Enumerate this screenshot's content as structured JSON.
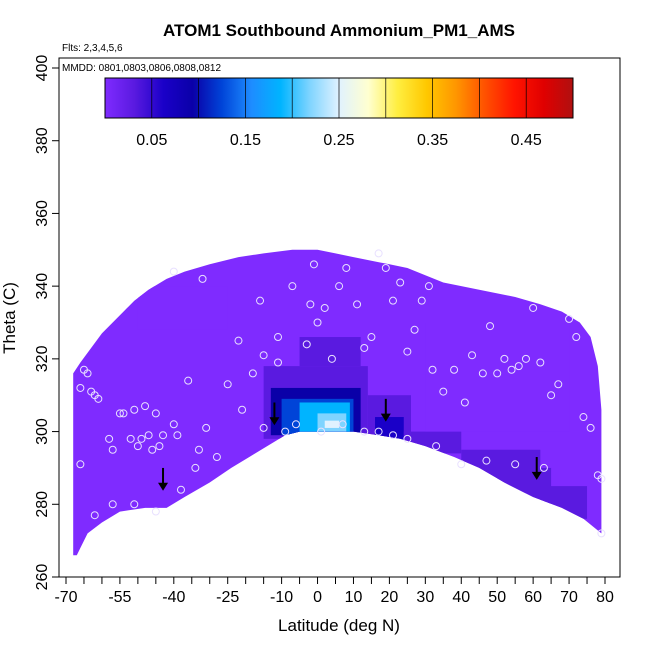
{
  "chart_data": {
    "type": "heatmap",
    "title": "ATOM1 Southbound Ammonium_PM1_AMS",
    "flights_note": "Flts: 2,3,4,5,6",
    "dates_note": "MMDD: 0801,0803,0806,0808,0812",
    "xlabel": "Latitude (deg N)",
    "ylabel": "Theta (C)",
    "xlim": [
      -70,
      80
    ],
    "ylim": [
      260,
      400
    ],
    "x_tick_labels": [
      "-70",
      "-55",
      "-40",
      "-25",
      "-10",
      "0",
      "10",
      "20",
      "30",
      "40",
      "50",
      "60",
      "70",
      "80"
    ],
    "y_tick_labels": [
      "260",
      "280",
      "300",
      "320",
      "340",
      "360",
      "380",
      "400"
    ],
    "colorbar": {
      "range": [
        0.0,
        0.5
      ],
      "tick_values": [
        0.05,
        0.15,
        0.25,
        0.35,
        0.45
      ],
      "tick_labels": [
        "0.05",
        "0.15",
        "0.25",
        "0.35",
        "0.45"
      ],
      "colors": [
        "#7f2bff",
        "#5a1ae0",
        "#1a00c8",
        "#0a00a8",
        "#0044d8",
        "#1e8cff",
        "#00b4ff",
        "#7fd4ff",
        "#e0f2ff",
        "#ffffd0",
        "#ffee40",
        "#ffc800",
        "#ff9600",
        "#ff5000",
        "#ff1400",
        "#e00000",
        "#b01010"
      ]
    },
    "domain_top": [
      [
        -68,
        316
      ],
      [
        -66,
        319
      ],
      [
        -63,
        323
      ],
      [
        -60,
        327
      ],
      [
        -57,
        330
      ],
      [
        -54,
        333
      ],
      [
        -51,
        336
      ],
      [
        -47,
        339
      ],
      [
        -42,
        342
      ],
      [
        -37,
        344
      ],
      [
        -30,
        346
      ],
      [
        -22,
        348
      ],
      [
        -15,
        349
      ],
      [
        -7,
        350
      ],
      [
        0,
        350
      ],
      [
        5,
        349
      ],
      [
        10,
        348
      ],
      [
        15,
        347
      ],
      [
        20,
        346
      ],
      [
        25,
        345
      ],
      [
        30,
        343
      ],
      [
        35,
        341
      ],
      [
        40,
        340
      ],
      [
        45,
        339
      ],
      [
        50,
        338
      ],
      [
        55,
        337
      ],
      [
        62,
        335
      ],
      [
        68,
        333
      ],
      [
        73,
        330
      ],
      [
        76,
        326
      ],
      [
        78,
        318
      ],
      [
        79,
        306
      ],
      [
        79,
        288
      ]
    ],
    "domain_bottom": [
      [
        79,
        272
      ],
      [
        74,
        276
      ],
      [
        68,
        279
      ],
      [
        60,
        282
      ],
      [
        52,
        286
      ],
      [
        45,
        290
      ],
      [
        38,
        293
      ],
      [
        30,
        296
      ],
      [
        23,
        298
      ],
      [
        17,
        299
      ],
      [
        10,
        300
      ],
      [
        5,
        300
      ],
      [
        0,
        300
      ],
      [
        -5,
        300
      ],
      [
        -9,
        299
      ],
      [
        -14,
        296
      ],
      [
        -19,
        293
      ],
      [
        -24,
        290
      ],
      [
        -30,
        286
      ],
      [
        -37,
        282
      ],
      [
        -42,
        279
      ],
      [
        -48,
        279
      ],
      [
        -55,
        278
      ],
      [
        -60,
        275
      ],
      [
        -64,
        272
      ],
      [
        -66,
        268
      ],
      [
        -67,
        266
      ],
      [
        -68,
        266
      ]
    ],
    "cells": [
      {
        "x": [
          -15,
          14
        ],
        "y": [
          298,
          318
        ],
        "value": 0.055
      },
      {
        "x": [
          -13,
          12
        ],
        "y": [
          299,
          312
        ],
        "value": 0.09
      },
      {
        "x": [
          -10,
          10
        ],
        "y": [
          299,
          309
        ],
        "value": 0.14
      },
      {
        "x": [
          -5,
          9
        ],
        "y": [
          299,
          308
        ],
        "value": 0.18
      },
      {
        "x": [
          0,
          8
        ],
        "y": [
          300,
          305
        ],
        "value": 0.22
      },
      {
        "x": [
          2,
          6
        ],
        "y": [
          301,
          303
        ],
        "value": 0.245
      },
      {
        "x": [
          14,
          26
        ],
        "y": [
          297,
          310
        ],
        "value": 0.05
      },
      {
        "x": [
          16,
          24
        ],
        "y": [
          297,
          304
        ],
        "value": 0.06
      },
      {
        "x": [
          24,
          40
        ],
        "y": [
          294,
          300
        ],
        "value": 0.035
      },
      {
        "x": [
          40,
          62
        ],
        "y": [
          283,
          295
        ],
        "value": 0.045
      },
      {
        "x": [
          50,
          65
        ],
        "y": [
          279,
          290
        ],
        "value": 0.055
      },
      {
        "x": [
          52,
          60
        ],
        "y": [
          313,
          322
        ],
        "value": 0.04
      },
      {
        "x": [
          62,
          75
        ],
        "y": [
          276,
          285
        ],
        "value": 0.035
      },
      {
        "x": [
          -50,
          -25
        ],
        "y": [
          328,
          340
        ],
        "value": 0.025
      },
      {
        "x": [
          30,
          70
        ],
        "y": [
          300,
          330
        ],
        "value": 0.028
      },
      {
        "x": [
          -5,
          12
        ],
        "y": [
          318,
          326
        ],
        "value": 0.03
      }
    ],
    "points": [
      [
        -66,
        312
      ],
      [
        -66,
        291
      ],
      [
        -65,
        317
      ],
      [
        -64,
        316
      ],
      [
        -63,
        311
      ],
      [
        -62,
        310
      ],
      [
        -61,
        309
      ],
      [
        -58,
        298
      ],
      [
        -57,
        295
      ],
      [
        -55,
        305
      ],
      [
        -54,
        305
      ],
      [
        -52,
        298
      ],
      [
        -51,
        306
      ],
      [
        -50,
        296
      ],
      [
        -49,
        298
      ],
      [
        -48,
        307
      ],
      [
        -47,
        299
      ],
      [
        -46,
        295
      ],
      [
        -45,
        305
      ],
      [
        -44,
        296
      ],
      [
        -43,
        299
      ],
      [
        -40,
        302
      ],
      [
        -39,
        299
      ],
      [
        -38,
        284
      ],
      [
        -36,
        314
      ],
      [
        -34,
        290
      ],
      [
        -33,
        295
      ],
      [
        -31,
        301
      ],
      [
        -28,
        293
      ],
      [
        -25,
        313
      ],
      [
        -21,
        306
      ],
      [
        -18,
        316
      ],
      [
        -15,
        321
      ],
      [
        -11,
        319
      ],
      [
        -40,
        344
      ],
      [
        -32,
        342
      ],
      [
        -22,
        325
      ],
      [
        -16,
        336
      ],
      [
        -11,
        326
      ],
      [
        -7,
        340
      ],
      [
        -3,
        324
      ],
      [
        -2,
        335
      ],
      [
        -1,
        346
      ],
      [
        0,
        330
      ],
      [
        2,
        334
      ],
      [
        4,
        320
      ],
      [
        6,
        340
      ],
      [
        8,
        345
      ],
      [
        11,
        335
      ],
      [
        13,
        323
      ],
      [
        15,
        326
      ],
      [
        17,
        349
      ],
      [
        19,
        345
      ],
      [
        21,
        336
      ],
      [
        23,
        341
      ],
      [
        25,
        322
      ],
      [
        27,
        328
      ],
      [
        29,
        336
      ],
      [
        31,
        340
      ],
      [
        32,
        317
      ],
      [
        35,
        311
      ],
      [
        38,
        317
      ],
      [
        41,
        308
      ],
      [
        43,
        321
      ],
      [
        46,
        316
      ],
      [
        48,
        329
      ],
      [
        50,
        316
      ],
      [
        52,
        320
      ],
      [
        54,
        317
      ],
      [
        56,
        318
      ],
      [
        58,
        320
      ],
      [
        60,
        334
      ],
      [
        62,
        319
      ],
      [
        65,
        310
      ],
      [
        67,
        313
      ],
      [
        70,
        331
      ],
      [
        72,
        326
      ],
      [
        74,
        304
      ],
      [
        76,
        301
      ],
      [
        78,
        288
      ],
      [
        79,
        287
      ],
      [
        79,
        272
      ],
      [
        -15,
        301
      ],
      [
        -9,
        300
      ],
      [
        -6,
        302
      ],
      [
        1,
        300
      ],
      [
        7,
        302
      ],
      [
        13,
        300
      ],
      [
        17,
        300
      ],
      [
        21,
        299
      ],
      [
        25,
        298
      ],
      [
        33,
        296
      ],
      [
        40,
        291
      ],
      [
        47,
        292
      ],
      [
        55,
        291
      ],
      [
        63,
        290
      ],
      [
        -45,
        278
      ],
      [
        -51,
        280
      ],
      [
        -57,
        280
      ],
      [
        -62,
        277
      ]
    ],
    "arrows": [
      [
        -43,
        284
      ],
      [
        -12,
        302
      ],
      [
        19,
        303
      ],
      [
        61,
        287
      ]
    ]
  }
}
